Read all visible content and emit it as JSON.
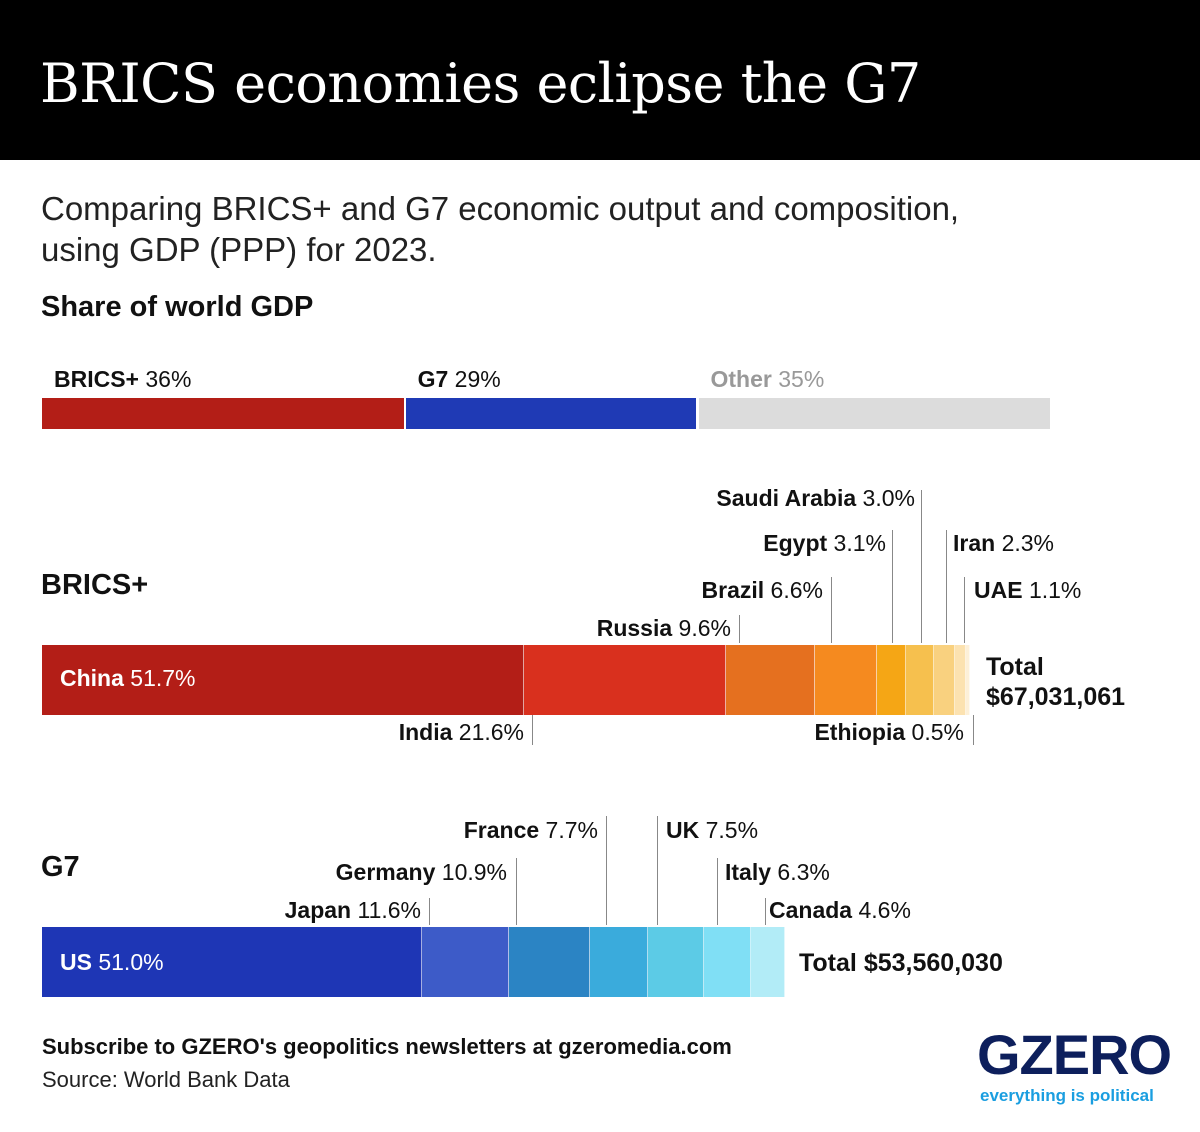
{
  "header": {
    "title": "BRICS economies eclipse the G7"
  },
  "subtitle": "Comparing BRICS+ and G7 economic output and composition, using GDP (PPP) for 2023.",
  "footer": {
    "subscribe": "Subscribe to GZERO's geopolitics newsletters at gzeromedia.com",
    "source": "Source: World Bank Data"
  },
  "logo": {
    "name": "GZERO",
    "tagline": "everything is political"
  },
  "chart_data": [
    {
      "type": "bar",
      "stacked": true,
      "title": "Share of world GDP",
      "unit": "%",
      "categories": [
        "BRICS+",
        "G7",
        "Other"
      ],
      "values": [
        36,
        29,
        35
      ],
      "colors": [
        "#b31e17",
        "#1f3ab5",
        "#dcdcdc"
      ]
    },
    {
      "type": "bar",
      "stacked": true,
      "title": "BRICS+",
      "unit": "%",
      "total_label": "Total",
      "total": "$67,031,061",
      "categories": [
        "China",
        "India",
        "Russia",
        "Brazil",
        "Egypt",
        "Saudi Arabia",
        "Iran",
        "UAE",
        "Ethiopia"
      ],
      "values": [
        51.7,
        21.6,
        9.6,
        6.6,
        3.1,
        3.0,
        2.3,
        1.1,
        0.5
      ],
      "colors": [
        "#b31e17",
        "#d9301e",
        "#e5701f",
        "#f58a1f",
        "#f5a615",
        "#f6c04e",
        "#f9d17f",
        "#fce2b0",
        "#fdf0d8"
      ]
    },
    {
      "type": "bar",
      "stacked": true,
      "title": "G7",
      "unit": "%",
      "total_label": "Total",
      "total": "$53,560,030",
      "categories": [
        "US",
        "Japan",
        "Germany",
        "France",
        "UK",
        "Italy",
        "Canada"
      ],
      "values": [
        51.0,
        11.6,
        10.9,
        7.7,
        7.5,
        6.3,
        4.6
      ],
      "colors": [
        "#1e36b5",
        "#3d5bc8",
        "#2b84c4",
        "#3aabdc",
        "#5ccbe6",
        "#80dff5",
        "#b2ecf7"
      ]
    }
  ]
}
